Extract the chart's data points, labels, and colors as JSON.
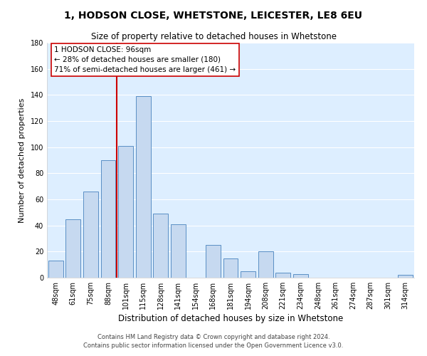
{
  "title": "1, HODSON CLOSE, WHETSTONE, LEICESTER, LE8 6EU",
  "subtitle": "Size of property relative to detached houses in Whetstone",
  "xlabel": "Distribution of detached houses by size in Whetstone",
  "ylabel": "Number of detached properties",
  "bar_labels": [
    "48sqm",
    "61sqm",
    "75sqm",
    "88sqm",
    "101sqm",
    "115sqm",
    "128sqm",
    "141sqm",
    "154sqm",
    "168sqm",
    "181sqm",
    "194sqm",
    "208sqm",
    "221sqm",
    "234sqm",
    "248sqm",
    "261sqm",
    "274sqm",
    "287sqm",
    "301sqm",
    "314sqm"
  ],
  "bar_heights": [
    13,
    45,
    66,
    90,
    101,
    139,
    49,
    41,
    0,
    25,
    15,
    5,
    20,
    4,
    3,
    0,
    0,
    0,
    0,
    0,
    2
  ],
  "bar_color": "#c6d9f0",
  "bar_edge_color": "#5a8fc5",
  "ylim": [
    0,
    180
  ],
  "yticks": [
    0,
    20,
    40,
    60,
    80,
    100,
    120,
    140,
    160,
    180
  ],
  "vline_x": 3.5,
  "vline_color": "#cc0000",
  "annotation_title": "1 HODSON CLOSE: 96sqm",
  "annotation_line1": "← 28% of detached houses are smaller (180)",
  "annotation_line2": "71% of semi-detached houses are larger (461) →",
  "annotation_box_color": "#ffffff",
  "annotation_box_edge": "#cc0000",
  "footer1": "Contains HM Land Registry data © Crown copyright and database right 2024.",
  "footer2": "Contains public sector information licensed under the Open Government Licence v3.0.",
  "bg_color": "#ffffff",
  "plot_bg_color": "#ddeeff",
  "grid_color": "#ffffff",
  "title_fontsize": 10,
  "subtitle_fontsize": 8.5,
  "xlabel_fontsize": 8.5,
  "ylabel_fontsize": 8,
  "tick_fontsize": 7,
  "footer_fontsize": 6,
  "ann_fontsize": 7.5
}
